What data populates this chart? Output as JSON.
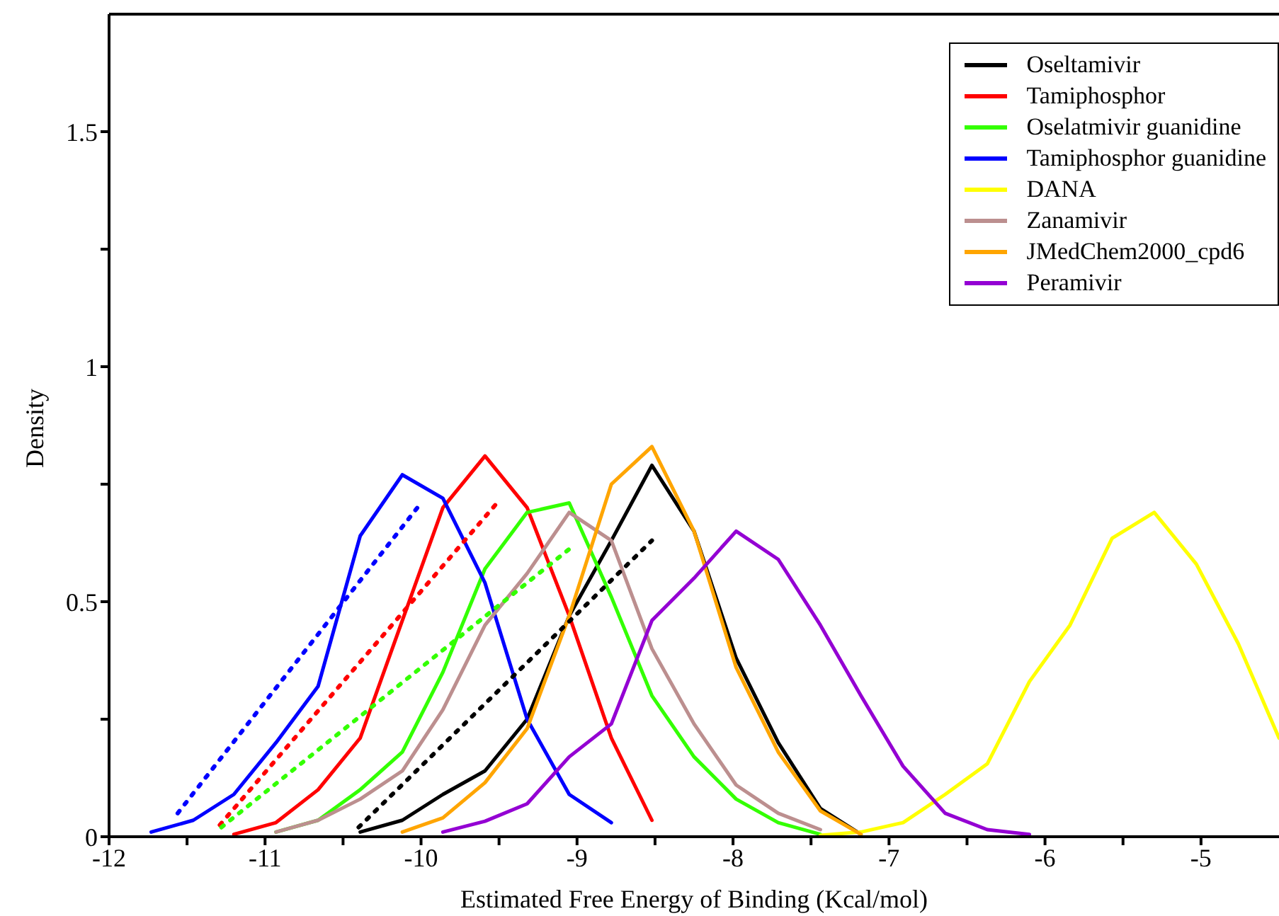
{
  "chart_data": {
    "type": "line",
    "xlabel": "Estimated Free Energy of Binding (Kcal/mol)",
    "ylabel": "Density",
    "x": [
      -11.73,
      -11.46,
      -11.2,
      -10.93,
      -10.66,
      -10.39,
      -10.12,
      -9.86,
      -9.59,
      -9.32,
      -9.05,
      -8.78,
      -8.52,
      -8.25,
      -7.98,
      -7.71,
      -7.44,
      -7.18,
      -6.91,
      -6.64,
      -6.37,
      -6.1,
      -5.84,
      -5.57,
      -5.3,
      -5.03,
      -4.76,
      -4.5
    ],
    "xlim": [
      -12,
      -4.5
    ],
    "ylim": [
      0,
      1.75
    ],
    "xticks": [
      -12,
      {
        "value": -11.5,
        "label": null
      },
      -11,
      {
        "value": -10.5,
        "label": null
      },
      -10,
      {
        "value": -9.5,
        "label": null
      },
      -9,
      {
        "value": -8.5,
        "label": null
      },
      -8,
      {
        "value": -7.5,
        "label": null
      },
      -7,
      {
        "value": -6.5,
        "label": null
      },
      -6,
      {
        "value": -5.5,
        "label": null
      },
      -5
    ],
    "yticks": [
      0,
      {
        "value": 0.25,
        "label": null
      },
      0.5,
      {
        "value": 0.75,
        "label": null
      },
      1,
      {
        "value": 1.25,
        "label": null
      },
      1.5
    ],
    "grid": false,
    "legend": "top right",
    "marker": "none",
    "line_style": "solid",
    "series": [
      {
        "name": "Oseltamivir",
        "color": "#000000",
        "values": [
          null,
          null,
          null,
          null,
          null,
          0.01,
          0.035,
          0.09,
          0.14,
          0.25,
          0.47,
          0.63,
          0.79,
          0.65,
          0.38,
          0.2,
          0.06,
          0.005,
          null,
          null,
          null,
          null,
          null,
          null,
          null,
          null,
          null,
          null
        ]
      },
      {
        "name": "Tamiphosphor",
        "color": "#ff0000",
        "values": [
          null,
          null,
          0.005,
          0.03,
          0.1,
          0.21,
          0.46,
          0.7,
          0.81,
          0.7,
          0.47,
          0.21,
          0.035,
          null,
          null,
          null,
          null,
          null,
          null,
          null,
          null,
          null,
          null,
          null,
          null,
          null,
          null,
          null
        ]
      },
      {
        "name": "Oselatmivir guanidine",
        "color": "#33ff00",
        "values": [
          null,
          null,
          null,
          0.01,
          0.035,
          0.1,
          0.18,
          0.35,
          0.57,
          0.69,
          0.71,
          0.51,
          0.3,
          0.17,
          0.08,
          0.03,
          0.005,
          null,
          null,
          null,
          null,
          null,
          null,
          null,
          null,
          null,
          null,
          null
        ]
      },
      {
        "name": "Tamiphosphor guanidine",
        "color": "#0000ff",
        "values": [
          0.01,
          0.035,
          0.09,
          0.2,
          0.32,
          0.64,
          0.77,
          0.72,
          0.54,
          0.25,
          0.09,
          0.03,
          null,
          null,
          null,
          null,
          null,
          null,
          null,
          null,
          null,
          null,
          null,
          null,
          null,
          null,
          null,
          null
        ]
      },
      {
        "name": "DANA",
        "color": "#ffff00",
        "values": [
          null,
          null,
          null,
          null,
          null,
          null,
          null,
          null,
          null,
          null,
          null,
          null,
          null,
          null,
          null,
          null,
          0.003,
          0.01,
          0.03,
          0.09,
          0.155,
          0.33,
          0.45,
          0.635,
          0.69,
          0.58,
          0.41,
          0.21
        ]
      },
      {
        "name": "Zanamivir",
        "color": "#bc8f8f",
        "values": [
          null,
          null,
          null,
          0.01,
          0.035,
          0.08,
          0.14,
          0.27,
          0.45,
          0.56,
          0.69,
          0.63,
          0.4,
          0.24,
          0.11,
          0.05,
          0.015,
          null,
          null,
          null,
          null,
          null,
          null,
          null,
          null,
          null,
          null,
          null
        ]
      },
      {
        "name": "JMedChem2000_cpd6",
        "color": "#ffa500",
        "values": [
          null,
          null,
          null,
          null,
          null,
          null,
          0.01,
          0.04,
          0.115,
          0.23,
          0.47,
          0.75,
          0.83,
          0.65,
          0.36,
          0.18,
          0.055,
          0.005,
          null,
          null,
          null,
          null,
          null,
          null,
          null,
          null,
          null,
          null
        ]
      },
      {
        "name": "Peramivir",
        "color": "#9400d3",
        "values": [
          null,
          null,
          null,
          null,
          null,
          null,
          null,
          0.01,
          0.033,
          0.07,
          0.17,
          0.24,
          0.46,
          0.55,
          0.65,
          0.59,
          0.45,
          0.3,
          0.15,
          0.05,
          0.015,
          0.005,
          null,
          null,
          null,
          null,
          null,
          null
        ]
      },
      {
        "type": "line",
        "line_style": "dotted",
        "color": "#0000ff",
        "x": [
          -11.56,
          -10
        ],
        "values": [
          0.05,
          0.71
        ]
      },
      {
        "type": "line",
        "line_style": "dotted",
        "color": "#ff0000",
        "x": [
          -11.29,
          -9.5
        ],
        "values": [
          0.025,
          0.715
        ]
      },
      {
        "type": "line",
        "line_style": "dotted",
        "color": "#33ff00",
        "x": [
          -11.28,
          -9.02
        ],
        "values": [
          0.02,
          0.62
        ]
      },
      {
        "type": "line",
        "line_style": "dotted",
        "color": "#000000",
        "x": [
          -10.4,
          -8.52
        ],
        "values": [
          0.02,
          0.63
        ]
      }
    ]
  }
}
